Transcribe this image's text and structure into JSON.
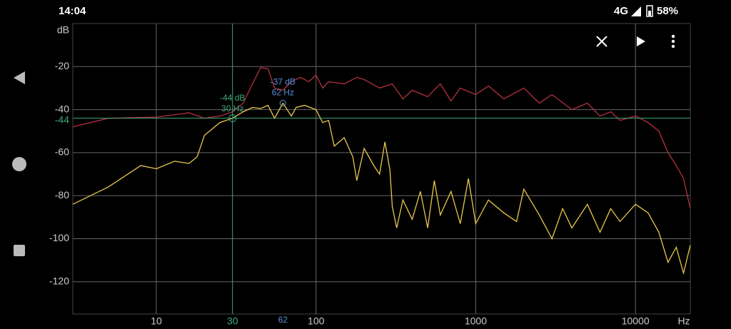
{
  "status_bar": {
    "time": "14:04",
    "network": "4G",
    "battery": "58%"
  },
  "chart_data": {
    "type": "line",
    "x_log": true,
    "y_unit": "dB",
    "x_unit": "Hz",
    "grid": true,
    "xlim": [
      3,
      22050
    ],
    "ylim": [
      -135,
      0
    ],
    "xticks": [
      10,
      100,
      1000,
      10000
    ],
    "yticks": [
      -20,
      -40,
      -60,
      -80,
      -100,
      -120
    ],
    "series": [
      {
        "color": "#b3303f",
        "x": [
          3,
          5,
          10,
          16,
          20,
          25,
          30,
          35,
          40,
          45,
          50,
          55,
          62,
          70,
          80,
          90,
          100,
          110,
          120,
          150,
          180,
          200,
          250,
          300,
          350,
          400,
          500,
          600,
          700,
          800,
          1000,
          1200,
          1500,
          2000,
          2500,
          3000,
          4000,
          5000,
          6000,
          7000,
          8000,
          10000,
          12000,
          14000,
          16000,
          18000,
          20000,
          22050
        ],
        "values": [
          -48,
          -44,
          -43.5,
          -41.5,
          -44,
          -43,
          -41,
          -37,
          -28,
          -20.5,
          -21,
          -30,
          -31,
          -27,
          -25,
          -27,
          -24,
          -30,
          -27,
          -28,
          -25,
          -26,
          -30,
          -28,
          -35,
          -31,
          -34,
          -28,
          -36,
          -30,
          -33,
          -29,
          -35,
          -30,
          -37,
          -33,
          -40,
          -37,
          -43,
          -41,
          -45,
          -43,
          -46,
          -50,
          -60,
          -66,
          -72,
          -86
        ]
      },
      {
        "color": "#e8c84c",
        "x": [
          3,
          5,
          8,
          10,
          13,
          16,
          18,
          20,
          25,
          30,
          35,
          40,
          45,
          50,
          55,
          62,
          70,
          75,
          85,
          100,
          110,
          120,
          130,
          150,
          170,
          180,
          200,
          230,
          250,
          270,
          290,
          300,
          320,
          350,
          400,
          450,
          500,
          550,
          600,
          700,
          800,
          900,
          1000,
          1200,
          1500,
          1800,
          2000,
          2500,
          3000,
          3500,
          4000,
          5000,
          6000,
          7000,
          8000,
          10000,
          12000,
          14000,
          16000,
          18000,
          20000,
          22050
        ],
        "values": [
          -84,
          -76,
          -66,
          -67.5,
          -64,
          -65,
          -62,
          -52,
          -46,
          -44,
          -41,
          -39,
          -39.5,
          -38,
          -44,
          -37,
          -43,
          -39,
          -38,
          -40,
          -46,
          -45,
          -57,
          -53,
          -62,
          -73,
          -58,
          -66,
          -70,
          -55,
          -68,
          -85,
          -95,
          -82,
          -91,
          -78,
          -95,
          -73,
          -89,
          -78,
          -93,
          -72,
          -93,
          -82,
          -88,
          -92,
          -77,
          -89,
          -100,
          -86,
          -95,
          -84,
          -97,
          -86,
          -92,
          -84,
          -88,
          -97,
          -111,
          -104,
          -116,
          -103
        ]
      }
    ],
    "cursor": {
      "x": 30,
      "y": -44,
      "label_top": "-44 dB",
      "label_bottom": "30 Hz",
      "color": "#3fa87a"
    },
    "marker": {
      "x": 62,
      "y": -37,
      "label_top": "-37 dB",
      "label_bottom": "62 Hz",
      "color": "#5b8fd6"
    }
  }
}
